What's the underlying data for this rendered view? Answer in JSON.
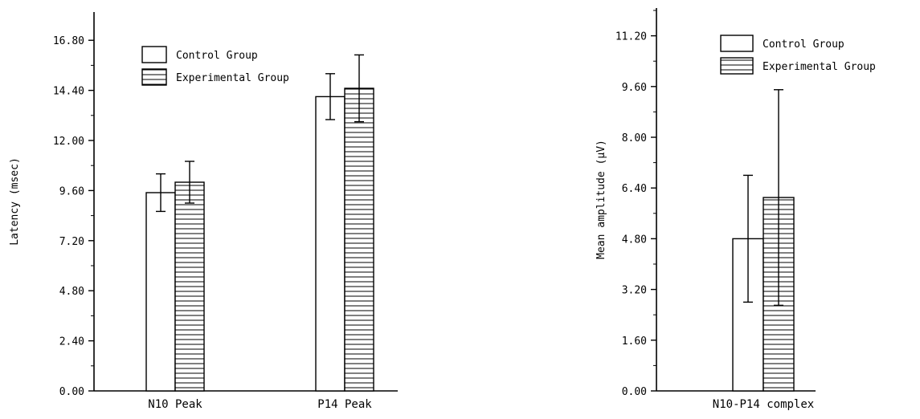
{
  "chart_data": [
    {
      "type": "bar",
      "title": "",
      "xlabel": "",
      "ylabel": "Latency (msec)",
      "ylim": [
        0,
        18
      ],
      "yticks": [
        "0.00",
        "2.40",
        "4.80",
        "7.20",
        "9.60",
        "12.00",
        "14.40",
        "16.80"
      ],
      "categories": [
        "N10 Peak",
        "P14 Peak"
      ],
      "series": [
        {
          "name": "Control Group",
          "values": [
            9.5,
            14.1
          ],
          "error": [
            0.9,
            1.1
          ],
          "pattern": "empty"
        },
        {
          "name": "Experimental Group",
          "values": [
            10.0,
            14.5
          ],
          "error": [
            1.0,
            1.6
          ],
          "pattern": "horizontal-lines"
        }
      ],
      "legend": "top-left",
      "grid": false
    },
    {
      "type": "bar",
      "title": "",
      "xlabel": "",
      "ylabel": "Mean amplitude (µV)",
      "ylim": [
        0,
        12
      ],
      "yticks": [
        "0.00",
        "1.60",
        "3.20",
        "4.80",
        "6.40",
        "8.00",
        "9.60",
        "11.20"
      ],
      "categories": [
        "N10-P14 complex"
      ],
      "series": [
        {
          "name": "Control Group",
          "values": [
            4.8
          ],
          "error": [
            2.0
          ],
          "pattern": "empty"
        },
        {
          "name": "Experimental Group",
          "values": [
            6.1
          ],
          "error": [
            3.4
          ],
          "pattern": "horizontal-lines"
        }
      ],
      "legend": "top-left",
      "grid": false
    }
  ]
}
